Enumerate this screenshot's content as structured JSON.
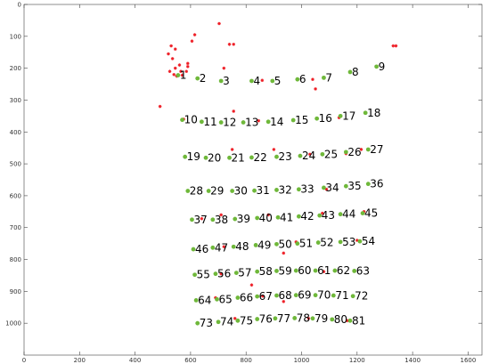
{
  "chart_data": {
    "type": "scatter",
    "title": "",
    "xlabel": "",
    "ylabel": "",
    "xlim": [
      0,
      1650
    ],
    "ylim": [
      0,
      1100
    ],
    "y_reversed": true,
    "grid": false,
    "legend": "none",
    "x_ticks": [
      0,
      200,
      400,
      600,
      800,
      1000,
      1200,
      1400,
      1600
    ],
    "y_ticks": [
      0,
      100,
      200,
      300,
      400,
      500,
      600,
      700,
      800,
      900,
      1000
    ],
    "colors": {
      "green": "#6fb83a",
      "red": "#ee1c24",
      "axis": "#444444",
      "text": "#000000"
    },
    "series": [
      {
        "marker": "green-dot",
        "points": [
          {
            "label": "1",
            "x": 555,
            "y": 222
          },
          {
            "label": "2",
            "x": 625,
            "y": 232
          },
          {
            "label": "3",
            "x": 710,
            "y": 240
          },
          {
            "label": "4",
            "x": 820,
            "y": 240
          },
          {
            "label": "5",
            "x": 895,
            "y": 240
          },
          {
            "label": "6",
            "x": 985,
            "y": 235
          },
          {
            "label": "7",
            "x": 1080,
            "y": 230
          },
          {
            "label": "8",
            "x": 1175,
            "y": 212
          },
          {
            "label": "9",
            "x": 1270,
            "y": 195
          },
          {
            "label": "10",
            "x": 570,
            "y": 362
          },
          {
            "label": "11",
            "x": 640,
            "y": 368
          },
          {
            "label": "12",
            "x": 710,
            "y": 370
          },
          {
            "label": "13",
            "x": 790,
            "y": 370
          },
          {
            "label": "14",
            "x": 880,
            "y": 368
          },
          {
            "label": "15",
            "x": 970,
            "y": 363
          },
          {
            "label": "16",
            "x": 1055,
            "y": 358
          },
          {
            "label": "17",
            "x": 1140,
            "y": 350
          },
          {
            "label": "18",
            "x": 1230,
            "y": 340
          },
          {
            "label": "19",
            "x": 580,
            "y": 478
          },
          {
            "label": "20",
            "x": 655,
            "y": 481
          },
          {
            "label": "21",
            "x": 740,
            "y": 481
          },
          {
            "label": "22",
            "x": 820,
            "y": 480
          },
          {
            "label": "23",
            "x": 910,
            "y": 478
          },
          {
            "label": "24",
            "x": 995,
            "y": 475
          },
          {
            "label": "25",
            "x": 1075,
            "y": 470
          },
          {
            "label": "26",
            "x": 1160,
            "y": 463
          },
          {
            "label": "27",
            "x": 1240,
            "y": 455
          },
          {
            "label": "28",
            "x": 590,
            "y": 585
          },
          {
            "label": "29",
            "x": 665,
            "y": 585
          },
          {
            "label": "30",
            "x": 750,
            "y": 585
          },
          {
            "label": "31",
            "x": 830,
            "y": 584
          },
          {
            "label": "32",
            "x": 910,
            "y": 582
          },
          {
            "label": "33",
            "x": 990,
            "y": 580
          },
          {
            "label": "34",
            "x": 1080,
            "y": 575
          },
          {
            "label": "35",
            "x": 1160,
            "y": 570
          },
          {
            "label": "36",
            "x": 1240,
            "y": 563
          },
          {
            "label": "37",
            "x": 605,
            "y": 675
          },
          {
            "label": "38",
            "x": 680,
            "y": 675
          },
          {
            "label": "39",
            "x": 760,
            "y": 673
          },
          {
            "label": "40",
            "x": 840,
            "y": 670
          },
          {
            "label": "41",
            "x": 915,
            "y": 668
          },
          {
            "label": "42",
            "x": 990,
            "y": 665
          },
          {
            "label": "43",
            "x": 1065,
            "y": 662
          },
          {
            "label": "44",
            "x": 1140,
            "y": 658
          },
          {
            "label": "45",
            "x": 1220,
            "y": 655
          },
          {
            "label": "46",
            "x": 610,
            "y": 768
          },
          {
            "label": "47",
            "x": 680,
            "y": 763
          },
          {
            "label": "48",
            "x": 755,
            "y": 760
          },
          {
            "label": "49",
            "x": 835,
            "y": 755
          },
          {
            "label": "50",
            "x": 910,
            "y": 752
          },
          {
            "label": "51",
            "x": 985,
            "y": 750
          },
          {
            "label": "52",
            "x": 1060,
            "y": 747
          },
          {
            "label": "53",
            "x": 1140,
            "y": 745
          },
          {
            "label": "54",
            "x": 1210,
            "y": 743
          },
          {
            "label": "55",
            "x": 615,
            "y": 848
          },
          {
            "label": "56",
            "x": 690,
            "y": 845
          },
          {
            "label": "57",
            "x": 765,
            "y": 842
          },
          {
            "label": "58",
            "x": 840,
            "y": 838
          },
          {
            "label": "59",
            "x": 910,
            "y": 836
          },
          {
            "label": "60",
            "x": 980,
            "y": 835
          },
          {
            "label": "61",
            "x": 1050,
            "y": 835
          },
          {
            "label": "62",
            "x": 1120,
            "y": 835
          },
          {
            "label": "63",
            "x": 1190,
            "y": 836
          },
          {
            "label": "64",
            "x": 620,
            "y": 928
          },
          {
            "label": "65",
            "x": 695,
            "y": 925
          },
          {
            "label": "66",
            "x": 770,
            "y": 920
          },
          {
            "label": "67",
            "x": 840,
            "y": 916
          },
          {
            "label": "68",
            "x": 910,
            "y": 913
          },
          {
            "label": "69",
            "x": 980,
            "y": 912
          },
          {
            "label": "70",
            "x": 1050,
            "y": 912
          },
          {
            "label": "71",
            "x": 1115,
            "y": 913
          },
          {
            "label": "72",
            "x": 1185,
            "y": 915
          },
          {
            "label": "73",
            "x": 625,
            "y": 1000
          },
          {
            "label": "74",
            "x": 700,
            "y": 996
          },
          {
            "label": "75",
            "x": 770,
            "y": 992
          },
          {
            "label": "76",
            "x": 840,
            "y": 987
          },
          {
            "label": "77",
            "x": 905,
            "y": 985
          },
          {
            "label": "78",
            "x": 975,
            "y": 984
          },
          {
            "label": "79",
            "x": 1040,
            "y": 985
          },
          {
            "label": "80",
            "x": 1110,
            "y": 988
          },
          {
            "label": "81",
            "x": 1175,
            "y": 992
          }
        ]
      },
      {
        "marker": "red-star",
        "points": [
          {
            "x": 703,
            "y": 60
          },
          {
            "x": 615,
            "y": 95
          },
          {
            "x": 530,
            "y": 130
          },
          {
            "x": 545,
            "y": 140
          },
          {
            "x": 605,
            "y": 115
          },
          {
            "x": 740,
            "y": 125
          },
          {
            "x": 755,
            "y": 125
          },
          {
            "x": 1330,
            "y": 130
          },
          {
            "x": 1340,
            "y": 130
          },
          {
            "x": 520,
            "y": 155
          },
          {
            "x": 535,
            "y": 170
          },
          {
            "x": 560,
            "y": 190
          },
          {
            "x": 590,
            "y": 185
          },
          {
            "x": 590,
            "y": 195
          },
          {
            "x": 720,
            "y": 200
          },
          {
            "x": 525,
            "y": 210
          },
          {
            "x": 545,
            "y": 200
          },
          {
            "x": 565,
            "y": 210
          },
          {
            "x": 585,
            "y": 210
          },
          {
            "x": 540,
            "y": 220
          },
          {
            "x": 550,
            "y": 225
          },
          {
            "x": 570,
            "y": 222
          },
          {
            "x": 1040,
            "y": 235
          },
          {
            "x": 1050,
            "y": 265
          },
          {
            "x": 858,
            "y": 238
          },
          {
            "x": 490,
            "y": 320
          },
          {
            "x": 755,
            "y": 335
          },
          {
            "x": 1135,
            "y": 355
          },
          {
            "x": 575,
            "y": 360
          },
          {
            "x": 845,
            "y": 365
          },
          {
            "x": 750,
            "y": 455
          },
          {
            "x": 900,
            "y": 455
          },
          {
            "x": 1030,
            "y": 470
          },
          {
            "x": 1215,
            "y": 455
          },
          {
            "x": 1160,
            "y": 468
          },
          {
            "x": 1090,
            "y": 580
          },
          {
            "x": 880,
            "y": 660
          },
          {
            "x": 640,
            "y": 672
          },
          {
            "x": 710,
            "y": 660
          },
          {
            "x": 1075,
            "y": 655
          },
          {
            "x": 1225,
            "y": 650
          },
          {
            "x": 720,
            "y": 760
          },
          {
            "x": 980,
            "y": 745
          },
          {
            "x": 935,
            "y": 780
          },
          {
            "x": 1200,
            "y": 740
          },
          {
            "x": 820,
            "y": 880
          },
          {
            "x": 1080,
            "y": 838
          },
          {
            "x": 710,
            "y": 845
          },
          {
            "x": 860,
            "y": 915
          },
          {
            "x": 935,
            "y": 932
          },
          {
            "x": 760,
            "y": 985
          },
          {
            "x": 1025,
            "y": 985
          },
          {
            "x": 1165,
            "y": 992
          },
          {
            "x": 690,
            "y": 920
          }
        ]
      }
    ]
  }
}
